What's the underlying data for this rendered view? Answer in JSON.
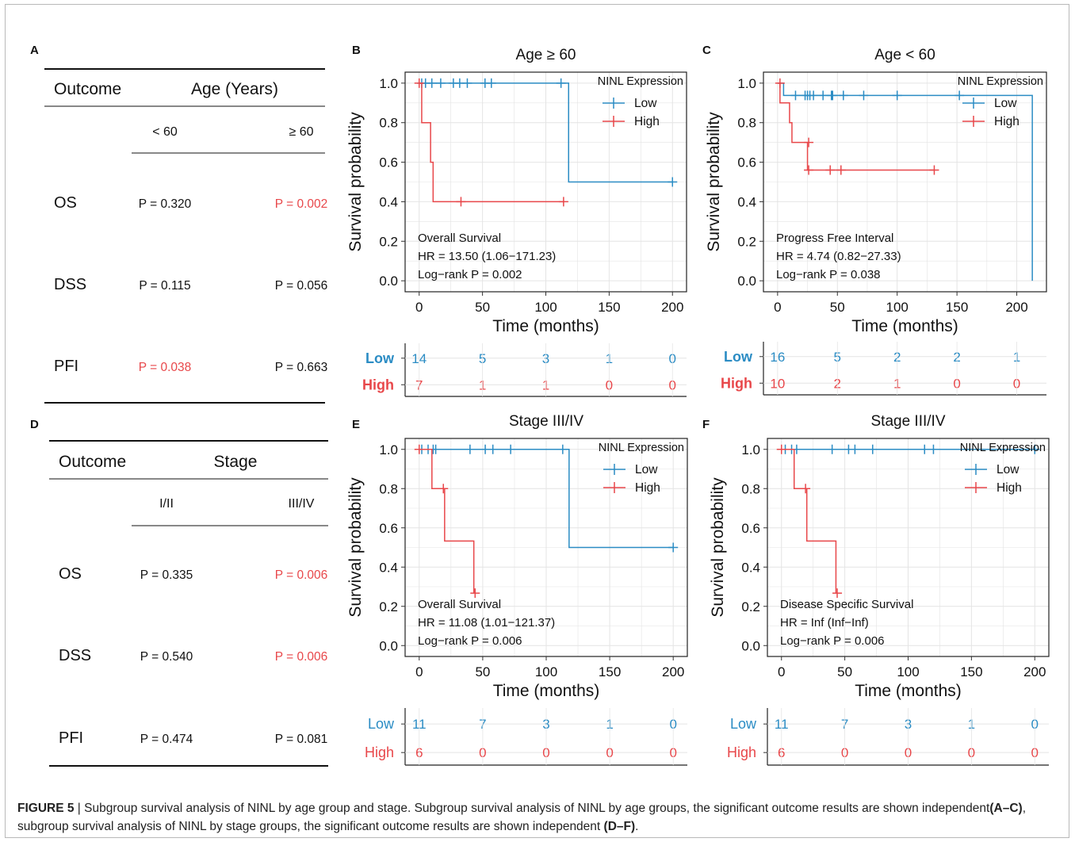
{
  "figure": {
    "caption_label": "FIGURE 5",
    "caption_sep": " | ",
    "caption_text_1": "Subgroup survival analysis of NINL by age group and stage. Subgroup survival analysis of NINL by age groups, the significant outcome results are shown independent",
    "caption_ref_1": "(A–C)",
    "caption_text_2": ", subgroup survival analysis of NINL by stage groups, the significant outcome results are shown independent ",
    "caption_ref_2": "(D–F)",
    "caption_end": "."
  },
  "colors": {
    "low": "#2b8cc4",
    "high": "#e8474a",
    "significant": "#e8474a",
    "grid": "#e4e4e4"
  },
  "tables": [
    {
      "panel": "A",
      "header_left": "Outcome",
      "header_right": "Age (Years)",
      "groups": [
        "< 60",
        "≥ 60"
      ],
      "rows": [
        {
          "outcome": "OS",
          "p": [
            "P = 0.320",
            "P = 0.002"
          ],
          "sig": [
            false,
            true
          ]
        },
        {
          "outcome": "DSS",
          "p": [
            "P = 0.115",
            "P = 0.056"
          ],
          "sig": [
            false,
            false
          ]
        },
        {
          "outcome": "PFI",
          "p": [
            "P = 0.038",
            "P = 0.663"
          ],
          "sig": [
            true,
            false
          ]
        }
      ]
    },
    {
      "panel": "D",
      "header_left": "Outcome",
      "header_right": "Stage",
      "groups": [
        "I/II",
        "III/IV"
      ],
      "rows": [
        {
          "outcome": "OS",
          "p": [
            "P = 0.335",
            "P = 0.006"
          ],
          "sig": [
            false,
            true
          ]
        },
        {
          "outcome": "DSS",
          "p": [
            "P = 0.540",
            "P = 0.006"
          ],
          "sig": [
            false,
            true
          ]
        },
        {
          "outcome": "PFI",
          "p": [
            "P = 0.474",
            "P = 0.081"
          ],
          "sig": [
            false,
            false
          ]
        }
      ]
    }
  ],
  "chart_data": [
    {
      "panel": "B",
      "type": "line",
      "title": "Age ≥ 60",
      "xlabel": "Time (months)",
      "ylabel": "Survival probability",
      "xlim": [
        0,
        200
      ],
      "ylim": [
        0,
        1
      ],
      "xticks": [
        0,
        50,
        100,
        150,
        200
      ],
      "yticks": [
        0.0,
        0.2,
        0.4,
        0.6,
        0.8,
        1.0
      ],
      "legend_title": "NINL Expression",
      "annotation": [
        "Overall Survival",
        "HR = 13.50 (1.06−171.23)",
        "Log−rank P = 0.002"
      ],
      "series": [
        {
          "name": "Low",
          "color": "#2b8cc4",
          "steps": [
            [
              0,
              1.0
            ],
            [
              118,
              0.5
            ],
            [
              200,
              0.5
            ]
          ],
          "censor": [
            [
              2,
              1.0
            ],
            [
              5,
              1.0
            ],
            [
              10,
              1.0
            ],
            [
              17,
              1.0
            ],
            [
              27,
              1.0
            ],
            [
              32,
              1.0
            ],
            [
              38,
              1.0
            ],
            [
              52,
              1.0
            ],
            [
              57,
              1.0
            ],
            [
              112,
              1.0
            ],
            [
              200,
              0.5
            ]
          ]
        },
        {
          "name": "High",
          "color": "#e8474a",
          "steps": [
            [
              0,
              1.0
            ],
            [
              2,
              0.8
            ],
            [
              9,
              0.6
            ],
            [
              11,
              0.4
            ],
            [
              114,
              0.4
            ]
          ],
          "censor": [
            [
              0,
              1.0
            ],
            [
              33,
              0.4
            ],
            [
              114,
              0.4
            ]
          ]
        }
      ],
      "risk_table": {
        "groups": [
          "Low",
          "High"
        ],
        "times": [
          0,
          50,
          100,
          150,
          200
        ],
        "counts": [
          [
            14,
            5,
            3,
            1,
            0
          ],
          [
            7,
            1,
            1,
            0,
            0
          ]
        ],
        "bold": true
      }
    },
    {
      "panel": "C",
      "type": "line",
      "title": "Age < 60",
      "xlabel": "Time (months)",
      "ylabel": "Survival probability",
      "xlim": [
        0,
        213
      ],
      "ylim": [
        0,
        1
      ],
      "xticks": [
        0,
        50,
        100,
        150,
        200
      ],
      "yticks": [
        0.0,
        0.2,
        0.4,
        0.6,
        0.8,
        1.0
      ],
      "legend_title": "NINL Expression",
      "annotation": [
        "Progress Free Interval",
        "HR = 4.74 (0.82−27.33)",
        "Log−rank P = 0.038"
      ],
      "series": [
        {
          "name": "Low",
          "color": "#2b8cc4",
          "steps": [
            [
              0,
              1.0
            ],
            [
              5,
              0.9375
            ],
            [
              213,
              0.9375
            ],
            [
              213,
              0.0
            ]
          ],
          "censor": [
            [
              15,
              0.9375
            ],
            [
              23,
              0.9375
            ],
            [
              25,
              0.9375
            ],
            [
              27,
              0.9375
            ],
            [
              30,
              0.9375
            ],
            [
              38,
              0.9375
            ],
            [
              45,
              0.9375
            ],
            [
              46,
              0.9375
            ],
            [
              55,
              0.9375
            ],
            [
              72,
              0.9375
            ],
            [
              100,
              0.9375
            ],
            [
              152,
              0.9375
            ]
          ]
        },
        {
          "name": "High",
          "color": "#e8474a",
          "steps": [
            [
              0,
              1.0
            ],
            [
              2,
              0.9
            ],
            [
              10,
              0.8
            ],
            [
              12,
              0.7
            ],
            [
              25,
              0.56
            ],
            [
              131,
              0.56
            ]
          ],
          "censor": [
            [
              2,
              1.0
            ],
            [
              26,
              0.7
            ],
            [
              26,
              0.56
            ],
            [
              44,
              0.56
            ],
            [
              53,
              0.56
            ],
            [
              131,
              0.56
            ]
          ]
        }
      ],
      "risk_table": {
        "groups": [
          "Low",
          "High"
        ],
        "times": [
          0,
          50,
          100,
          150,
          200
        ],
        "counts": [
          [
            16,
            5,
            2,
            2,
            1
          ],
          [
            10,
            2,
            1,
            0,
            0
          ]
        ],
        "bold": true
      }
    },
    {
      "panel": "E",
      "type": "line",
      "title": "Stage III/IV",
      "xlabel": "Time (months)",
      "ylabel": "Survival probability",
      "xlim": [
        0,
        200
      ],
      "ylim": [
        0,
        1
      ],
      "xticks": [
        0,
        50,
        100,
        150,
        200
      ],
      "yticks": [
        0.0,
        0.2,
        0.4,
        0.6,
        0.8,
        1.0
      ],
      "legend_title": "NINL Expression",
      "annotation": [
        "Overall Survival",
        "HR = 11.08 (1.01−121.37)",
        "Log−rank P = 0.006"
      ],
      "series": [
        {
          "name": "Low",
          "color": "#2b8cc4",
          "steps": [
            [
              0,
              1.0
            ],
            [
              118,
              0.5
            ],
            [
              200,
              0.5
            ]
          ],
          "censor": [
            [
              2,
              1.0
            ],
            [
              7,
              1.0
            ],
            [
              11,
              1.0
            ],
            [
              13,
              1.0
            ],
            [
              40,
              1.0
            ],
            [
              52,
              1.0
            ],
            [
              58,
              1.0
            ],
            [
              72,
              1.0
            ],
            [
              113,
              1.0
            ],
            [
              200,
              0.5
            ]
          ]
        },
        {
          "name": "High",
          "color": "#e8474a",
          "steps": [
            [
              0,
              1.0
            ],
            [
              10,
              0.8
            ],
            [
              20,
              0.533
            ],
            [
              43,
              0.267
            ],
            [
              43,
              0.267
            ]
          ],
          "censor": [
            [
              0,
              1.0
            ],
            [
              19,
              0.8
            ],
            [
              44,
              0.267
            ]
          ]
        }
      ],
      "risk_table": {
        "groups": [
          "Low",
          "High"
        ],
        "times": [
          0,
          50,
          100,
          150,
          200
        ],
        "counts": [
          [
            11,
            7,
            3,
            1,
            0
          ],
          [
            6,
            0,
            0,
            0,
            0
          ]
        ],
        "bold": false
      }
    },
    {
      "panel": "F",
      "type": "line",
      "title": "Stage III/IV",
      "xlabel": "Time (months)",
      "ylabel": "Survival probability",
      "xlim": [
        0,
        200
      ],
      "ylim": [
        0,
        1
      ],
      "xticks": [
        0,
        50,
        100,
        150,
        200
      ],
      "yticks": [
        0.0,
        0.2,
        0.4,
        0.6,
        0.8,
        1.0
      ],
      "legend_title": "NINL Expression",
      "annotation": [
        "Disease Specific Survival",
        "HR = Inf (Inf−Inf)",
        "Log−rank P = 0.006"
      ],
      "series": [
        {
          "name": "Low",
          "color": "#2b8cc4",
          "steps": [
            [
              0,
              1.0
            ],
            [
              200,
              1.0
            ]
          ],
          "censor": [
            [
              3,
              1.0
            ],
            [
              8,
              1.0
            ],
            [
              12,
              1.0
            ],
            [
              40,
              1.0
            ],
            [
              53,
              1.0
            ],
            [
              58,
              1.0
            ],
            [
              72,
              1.0
            ],
            [
              113,
              1.0
            ],
            [
              120,
              1.0
            ],
            [
              200,
              1.0
            ]
          ]
        },
        {
          "name": "High",
          "color": "#e8474a",
          "steps": [
            [
              0,
              1.0
            ],
            [
              10,
              0.8
            ],
            [
              20,
              0.533
            ],
            [
              43,
              0.267
            ],
            [
              43,
              0.267
            ]
          ],
          "censor": [
            [
              0,
              1.0
            ],
            [
              19,
              0.8
            ],
            [
              44,
              0.267
            ]
          ]
        }
      ],
      "risk_table": {
        "groups": [
          "Low",
          "High"
        ],
        "times": [
          0,
          50,
          100,
          150,
          200
        ],
        "counts": [
          [
            11,
            7,
            3,
            1,
            0
          ],
          [
            6,
            0,
            0,
            0,
            0
          ]
        ],
        "bold": false
      }
    }
  ]
}
